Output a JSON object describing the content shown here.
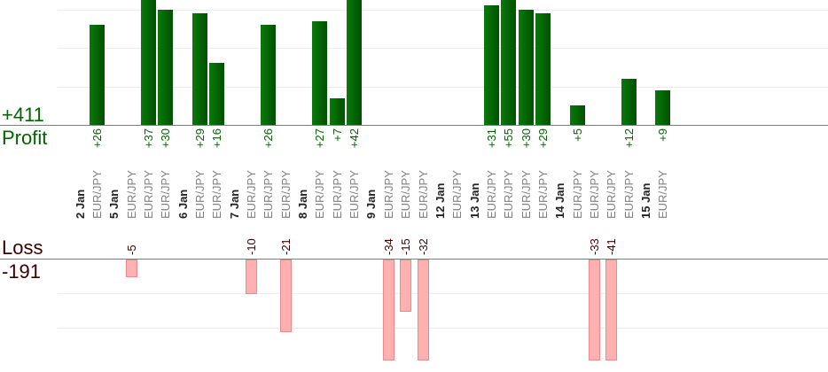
{
  "summary": {
    "profit_total": "+411",
    "profit_label": "Profit",
    "loss_label": "Loss",
    "loss_total": "-191"
  },
  "colors": {
    "profit": "#006400",
    "loss_text": "#3a0000",
    "loss_bar": "#ffb0b0",
    "pair_text": "#808080"
  },
  "chart_data": {
    "type": "bar",
    "title": "",
    "gridlines": true,
    "dates": [
      {
        "label": "2 Jan",
        "trades": [
          {
            "pair": "EUR/JPY",
            "value": 26
          }
        ]
      },
      {
        "label": "5 Jan",
        "trades": [
          {
            "pair": "EUR/JPY",
            "value": -5
          },
          {
            "pair": "EUR/JPY",
            "value": 37
          },
          {
            "pair": "EUR/JPY",
            "value": 30
          }
        ]
      },
      {
        "label": "6 Jan",
        "trades": [
          {
            "pair": "EUR/JPY",
            "value": 29
          },
          {
            "pair": "EUR/JPY",
            "value": 16
          }
        ]
      },
      {
        "label": "7 Jan",
        "trades": [
          {
            "pair": "EUR/JPY",
            "value": -10
          },
          {
            "pair": "EUR/JPY",
            "value": 26
          },
          {
            "pair": "EUR/JPY",
            "value": -21
          }
        ]
      },
      {
        "label": "8 Jan",
        "trades": [
          {
            "pair": "EUR/JPY",
            "value": 27
          },
          {
            "pair": "EUR/JPY",
            "value": 7
          },
          {
            "pair": "EUR/JPY",
            "value": 42
          }
        ]
      },
      {
        "label": "9 Jan",
        "trades": [
          {
            "pair": "EUR/JPY",
            "value": -34
          },
          {
            "pair": "EUR/JPY",
            "value": -15
          },
          {
            "pair": "EUR/JPY",
            "value": -32
          }
        ]
      },
      {
        "label": "12 Jan",
        "trades": [
          {
            "pair": "EUR/JPY",
            "value": 0
          }
        ]
      },
      {
        "label": "13 Jan",
        "trades": [
          {
            "pair": "EUR/JPY",
            "value": 31
          },
          {
            "pair": "EUR/JPY",
            "value": 55
          },
          {
            "pair": "EUR/JPY",
            "value": 30
          },
          {
            "pair": "EUR/JPY",
            "value": 29
          }
        ]
      },
      {
        "label": "14 Jan",
        "trades": [
          {
            "pair": "EUR/JPY",
            "value": 5
          },
          {
            "pair": "EUR/JPY",
            "value": -33
          },
          {
            "pair": "EUR/JPY",
            "value": -41
          },
          {
            "pair": "EUR/JPY",
            "value": 12
          }
        ]
      },
      {
        "label": "15 Jan",
        "trades": [
          {
            "pair": "EUR/JPY",
            "value": 9
          }
        ]
      }
    ]
  }
}
